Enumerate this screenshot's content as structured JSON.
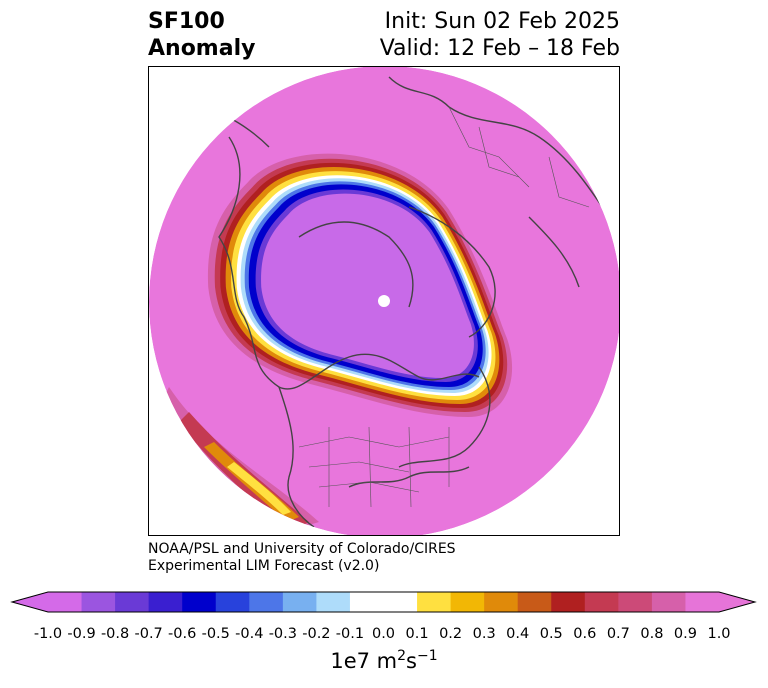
{
  "header": {
    "title_line1": "SF100",
    "title_line2": "Anomaly",
    "init_text": "Init: Sun 02 Feb 2025",
    "valid_text": "Valid: 12 Feb – 18 Feb"
  },
  "credit": {
    "line1": "NOAA/PSL and University of Colorado/CIRES",
    "line2": "Experimental LIM Forecast (v2.0)"
  },
  "colorbar": {
    "ticks": [
      "-1.0",
      "-0.9",
      "-0.8",
      "-0.7",
      "-0.6",
      "-0.5",
      "-0.4",
      "-0.3",
      "-0.2",
      "-0.1",
      "0.0",
      "0.1",
      "0.2",
      "0.3",
      "0.4",
      "0.5",
      "0.6",
      "0.7",
      "0.8",
      "0.9",
      "1.0"
    ],
    "colors": [
      "#d46ae8",
      "#9b55e0",
      "#6a3ad6",
      "#3a1fd0",
      "#0000cc",
      "#2842dc",
      "#4d76e8",
      "#78b0f0",
      "#aedcfa",
      "#ffffff",
      "#ffffff",
      "#ffe040",
      "#f2b705",
      "#e08a0a",
      "#c85a18",
      "#b02020",
      "#c43a52",
      "#cc4a78",
      "#d660aa",
      "#e674d8"
    ],
    "units_base": "1e7 m",
    "units_exp1": "2",
    "units_mid": "s",
    "units_exp2": "−1"
  },
  "map": {
    "background_color": "#e876dc",
    "pole_marker_color": "#ffffff"
  }
}
